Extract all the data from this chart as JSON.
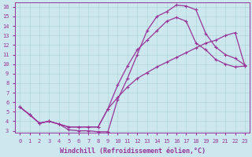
{
  "xlabel": "Windchill (Refroidissement éolien,°C)",
  "xlim": [
    -0.5,
    23.5
  ],
  "ylim": [
    2.8,
    16.5
  ],
  "xticks": [
    0,
    1,
    2,
    3,
    4,
    5,
    6,
    7,
    8,
    9,
    10,
    11,
    12,
    13,
    14,
    15,
    16,
    17,
    18,
    19,
    20,
    21,
    22,
    23
  ],
  "yticks": [
    3,
    4,
    5,
    6,
    7,
    8,
    9,
    10,
    11,
    12,
    13,
    14,
    15,
    16
  ],
  "line_color": "#993399",
  "bg_color": "#cce8ee",
  "grid_color": "#b0d8d8",
  "curve1_x": [
    0,
    1,
    2,
    3,
    4,
    5,
    6,
    7,
    8,
    9,
    10,
    11,
    12,
    13,
    14,
    15,
    16,
    17,
    18,
    19,
    20,
    21,
    22,
    23
  ],
  "curve1_y": [
    5.5,
    4.7,
    3.8,
    4.0,
    3.7,
    3.1,
    3.0,
    3.0,
    2.9,
    2.9,
    6.3,
    8.5,
    11.0,
    13.5,
    15.0,
    15.5,
    16.2,
    16.1,
    15.7,
    13.2,
    11.8,
    11.0,
    10.6,
    9.9
  ],
  "curve2_x": [
    0,
    1,
    2,
    3,
    4,
    5,
    6,
    7,
    8,
    9,
    10,
    11,
    12,
    13,
    14,
    15,
    16,
    17,
    18,
    19,
    20,
    21,
    22,
    23
  ],
  "curve2_y": [
    5.5,
    4.7,
    3.8,
    4.0,
    3.7,
    3.4,
    3.4,
    3.4,
    3.4,
    5.3,
    6.5,
    7.6,
    8.5,
    9.1,
    9.7,
    10.2,
    10.7,
    11.2,
    11.7,
    12.2,
    12.5,
    13.0,
    13.3,
    9.8
  ],
  "curve3_x": [
    0,
    1,
    2,
    3,
    4,
    5,
    6,
    7,
    8,
    9,
    10,
    11,
    12,
    13,
    14,
    15,
    16,
    17,
    18,
    19,
    20,
    21,
    22,
    23
  ],
  "curve3_y": [
    5.5,
    4.7,
    3.8,
    4.0,
    3.7,
    3.4,
    3.4,
    3.4,
    3.4,
    5.3,
    7.8,
    9.8,
    11.5,
    12.5,
    13.5,
    14.5,
    14.9,
    14.5,
    12.2,
    11.5,
    10.5,
    10.0,
    9.7,
    9.8
  ],
  "markersize": 3,
  "linewidth": 0.9,
  "tick_fontsize": 5.0,
  "xlabel_fontsize": 6.0
}
